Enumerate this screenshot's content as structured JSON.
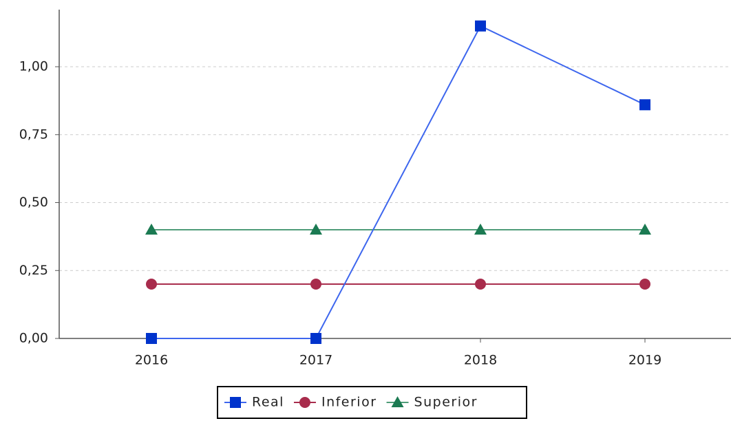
{
  "chart_data": {
    "type": "line",
    "categories": [
      "2016",
      "2017",
      "2018",
      "2019"
    ],
    "series": [
      {
        "name": "Real",
        "color": "#0033cc",
        "line_color": "#3d66ee",
        "marker": "square",
        "values": [
          0,
          0,
          1.15,
          0.86
        ]
      },
      {
        "name": "Inferior",
        "color": "#a82c4c",
        "line_color": "#a82c4c",
        "marker": "circle",
        "values": [
          0.2,
          0.2,
          0.2,
          0.2
        ]
      },
      {
        "name": "Superior",
        "color": "#1b7a52",
        "line_color": "#4f9c78",
        "marker": "triangle",
        "values": [
          0.4,
          0.4,
          0.4,
          0.4
        ]
      }
    ],
    "ylim": [
      0,
      1.2
    ],
    "yticks": [
      {
        "value": 0,
        "label": "0,00"
      },
      {
        "value": 0.25,
        "label": "0,25"
      },
      {
        "value": 0.5,
        "label": "0,50"
      },
      {
        "value": 0.75,
        "label": "0,75"
      },
      {
        "value": 1,
        "label": "1,00"
      }
    ],
    "grid": true,
    "legend": "bottom"
  }
}
